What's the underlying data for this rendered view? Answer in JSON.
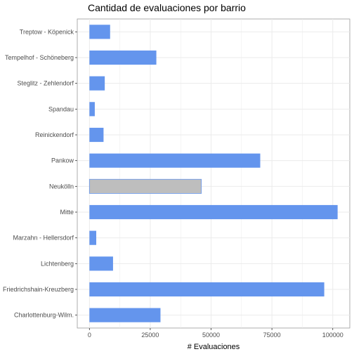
{
  "chart_data": {
    "type": "bar",
    "orientation": "horizontal",
    "title": "Cantidad de evaluaciones por barrio",
    "xlabel": "# Evaluaciones",
    "ylabel": "",
    "xlim": [
      -5000,
      107000
    ],
    "xticks": [
      0,
      25000,
      50000,
      75000,
      100000
    ],
    "xtick_labels": [
      "0",
      "25000",
      "50000",
      "75000",
      "100000"
    ],
    "grid": true,
    "legend": "none",
    "colors": {
      "default": "#6495ed",
      "highlight": "#bebebe",
      "highlight_border": "#6495ed",
      "grid": "#ebebeb",
      "panel_border": "#999999"
    },
    "highlight_category": "Neukölln",
    "categories": [
      "Treptow - Köpenick",
      "Tempelhof - Schöneberg",
      "Steglitz - Zehlendorf",
      "Spandau",
      "Reinickendorf",
      "Pankow",
      "Neukölln",
      "Mitte",
      "Marzahn - Hellersdorf",
      "Lichtenberg",
      "Friedrichshain-Kreuzberg",
      "Charlottenburg-Wilm."
    ],
    "values": [
      8500,
      27500,
      6300,
      2200,
      5800,
      70200,
      46000,
      102000,
      2800,
      9700,
      96500,
      29200
    ]
  }
}
